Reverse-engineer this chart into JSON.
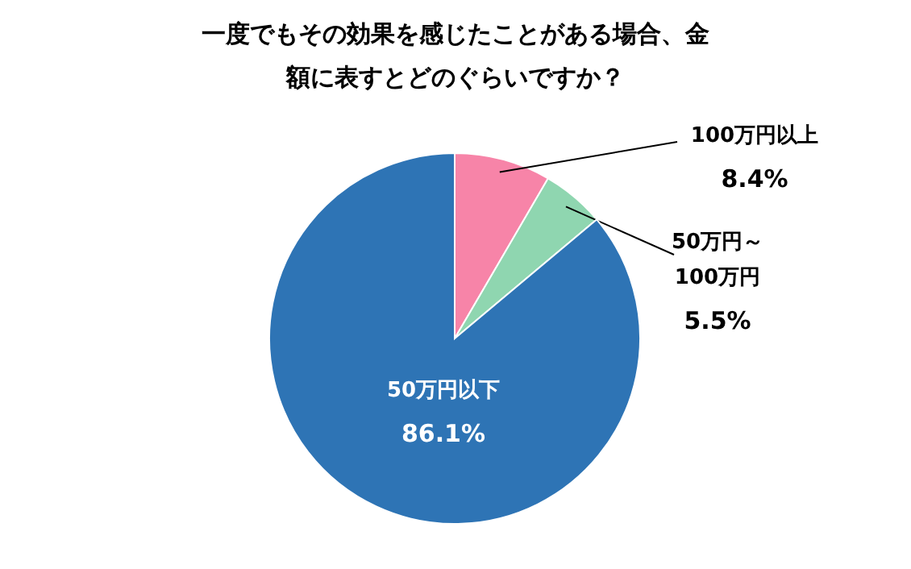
{
  "chart_data": {
    "type": "pie",
    "title": "一度でもその効果を感じたことがある場合、金額に表すとどのぐらいですか？",
    "categories": [
      "100万円以上",
      "50万円～100万円",
      "50万円以下"
    ],
    "values": [
      8.4,
      5.5,
      86.1
    ],
    "colors": [
      "#f784a8",
      "#8fd6b0",
      "#2e74b5"
    ],
    "value_labels": [
      "8.4%",
      "5.5%",
      "86.1%"
    ]
  }
}
